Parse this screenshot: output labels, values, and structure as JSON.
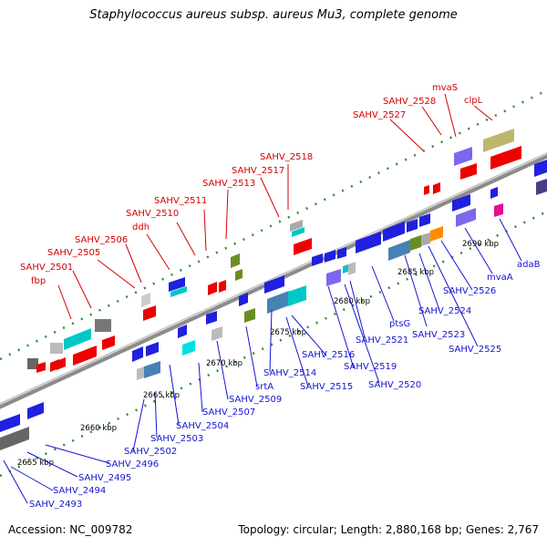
{
  "title": "Staphylococcus aureus subsp. aureus Mu3, complete genome",
  "footer": {
    "accession": "Accession: NC_009782",
    "topology": "Topology: circular; Length: 2,880,168 bp; Genes: 2,767"
  },
  "colors": {
    "red_label": "#d40000",
    "blue_label": "#1414d2",
    "backbone": "#8c8c8c",
    "tick": "#2e8b2e"
  },
  "scale_labels": [
    "2655 kbp",
    "2660 kbp",
    "2665 kbp",
    "2670 kbp",
    "2675 kbp",
    "2680 kbp",
    "2685 kbp",
    "2690 kbp"
  ],
  "top_labels": [
    "fbp",
    "SAHV_2501",
    "SAHV_2505",
    "SAHV_2506",
    "ddh",
    "SAHV_2510",
    "SAHV_2511",
    "SAHV_2513",
    "SAHV_2517",
    "SAHV_2518",
    "SAHV_2527",
    "SAHV_2528",
    "mvaS",
    "clpL"
  ],
  "bottom_labels": [
    "SAHV_2493",
    "SAHV_2494",
    "SAHV_2495",
    "SAHV_2496",
    "SAHV_2502",
    "SAHV_2503",
    "SAHV_2504",
    "SAHV_2507",
    "SAHV_2509",
    "srtA",
    "SAHV_2514",
    "SAHV_2515",
    "SAHV_2516",
    "SAHV_2519",
    "SAHV_2520",
    "SAHV_2521",
    "ptsG",
    "SAHV_2523",
    "SAHV_2524",
    "SAHV_2525",
    "SAHV_2526",
    "mvaA",
    "adaB"
  ]
}
